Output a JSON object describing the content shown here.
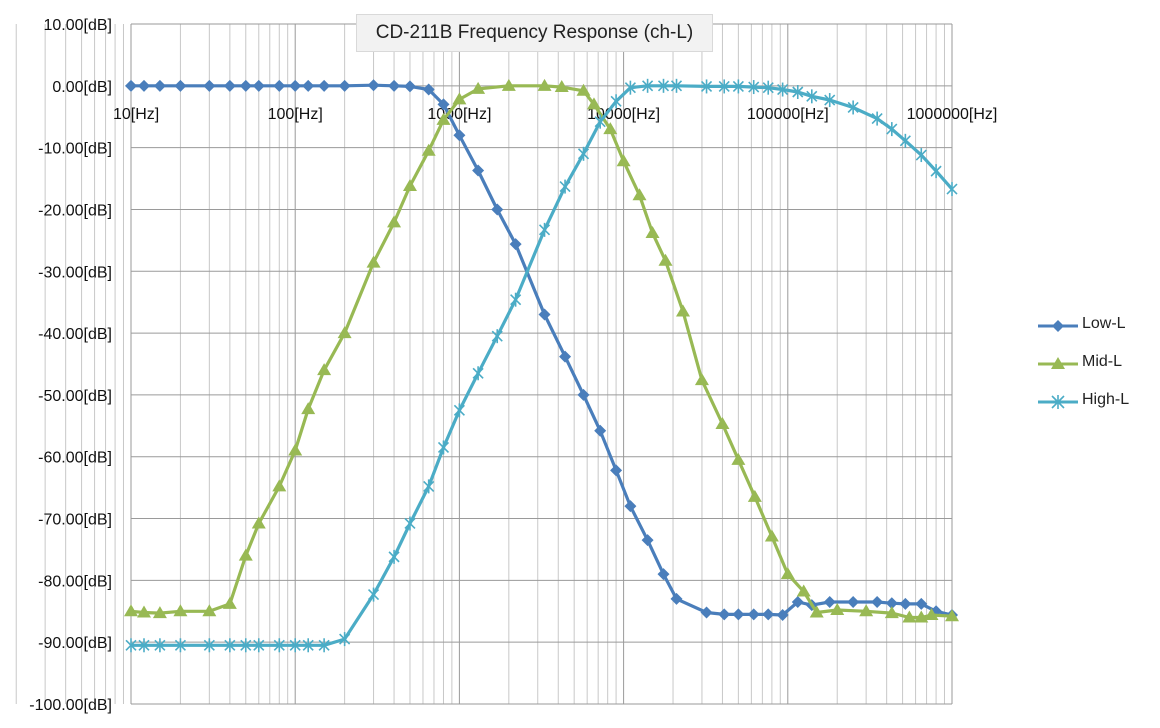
{
  "chart_data": {
    "type": "line",
    "title": "CD-211B Frequency Response (ch-L)",
    "xscale": "log",
    "xlim": [
      10,
      1000000
    ],
    "ylim": [
      -100,
      10
    ],
    "y_tick_labels": [
      "10.00[dB]",
      "0.00[dB]",
      "-10.00[dB]",
      "-20.00[dB]",
      "-30.00[dB]",
      "-40.00[dB]",
      "-50.00[dB]",
      "-60.00[dB]",
      "-70.00[dB]",
      "-80.00[dB]",
      "-90.00[dB]",
      "-100.00[dB]"
    ],
    "x_tick_labels": [
      "10[Hz]",
      "100[Hz]",
      "1000[Hz]",
      "10000[Hz]",
      "100000[Hz]",
      "1000000[Hz]"
    ],
    "grid": true,
    "legend_position": "right",
    "series": [
      {
        "name": "Low-L",
        "color": "#4a7ebb",
        "marker": "diamond",
        "x": [
          10,
          12,
          15,
          20,
          30,
          40,
          50,
          60,
          80,
          100,
          120,
          150,
          200,
          300,
          400,
          500,
          650,
          800,
          1000,
          1300,
          1700,
          2200,
          3300,
          4400,
          5700,
          7200,
          9000,
          11000,
          14000,
          17500,
          21000,
          32000,
          41000,
          50000,
          62000,
          76000,
          93000,
          115000,
          140000,
          180000,
          250000,
          350000,
          430000,
          520000,
          650000,
          800000,
          1000000
        ],
        "y": [
          0,
          0,
          0,
          0,
          0,
          0,
          0,
          0,
          0,
          0,
          0,
          0,
          0,
          0.1,
          0,
          -0.1,
          -0.6,
          -3,
          -8,
          -13.7,
          -20,
          -25.6,
          -37,
          -43.8,
          -50,
          -55.8,
          -62.2,
          -68,
          -73.5,
          -79,
          -83,
          -85.2,
          -85.5,
          -85.5,
          -85.5,
          -85.5,
          -85.6,
          -83.5,
          -84,
          -83.5,
          -83.5,
          -83.5,
          -83.7,
          -83.8,
          -83.8,
          -85,
          -85.6
        ]
      },
      {
        "name": "Mid-L",
        "color": "#98b954",
        "marker": "triangle",
        "x": [
          10,
          12,
          15,
          20,
          30,
          40,
          50,
          60,
          80,
          100,
          120,
          150,
          200,
          300,
          400,
          500,
          650,
          800,
          1000,
          1300,
          2000,
          3300,
          4200,
          5700,
          6600,
          8300,
          10000,
          12500,
          15000,
          18000,
          23000,
          30000,
          40000,
          50000,
          63000,
          80000,
          100000,
          125000,
          150000,
          200000,
          300000,
          430000,
          550000,
          650000,
          750000,
          1000000
        ],
        "y": [
          -85,
          -85.2,
          -85.3,
          -85,
          -85,
          -83.8,
          -76,
          -70.8,
          -64.8,
          -59,
          -52.3,
          -46,
          -40,
          -28.6,
          -22.1,
          -16.2,
          -10.5,
          -5.5,
          -2.2,
          -0.5,
          0,
          0,
          -0.2,
          -0.8,
          -3,
          -7,
          -12.2,
          -17.7,
          -23.8,
          -28.3,
          -36.5,
          -47.6,
          -54.7,
          -60.5,
          -66.5,
          -72.9,
          -79,
          -81.8,
          -85.2,
          -84.8,
          -85,
          -85.3,
          -86,
          -86,
          -85.6,
          -85.8
        ]
      },
      {
        "name": "High-L",
        "color": "#4bacc6",
        "marker": "star",
        "x": [
          10,
          12,
          15,
          20,
          30,
          40,
          50,
          60,
          80,
          100,
          120,
          150,
          200,
          300,
          400,
          500,
          650,
          800,
          1000,
          1300,
          1700,
          2200,
          3300,
          4400,
          5700,
          7200,
          9000,
          11000,
          14000,
          17500,
          21000,
          32000,
          41000,
          50000,
          62000,
          76000,
          93000,
          115000,
          140000,
          180000,
          250000,
          350000,
          430000,
          520000,
          650000,
          800000,
          1000000
        ],
        "y": [
          -90.5,
          -90.5,
          -90.5,
          -90.5,
          -90.5,
          -90.5,
          -90.5,
          -90.5,
          -90.5,
          -90.5,
          -90.5,
          -90.5,
          -89.5,
          -82.3,
          -76.2,
          -70.8,
          -64.8,
          -58.5,
          -52.5,
          -46.5,
          -40.5,
          -34.6,
          -23.3,
          -16.3,
          -11,
          -5.8,
          -2.5,
          -0.3,
          0,
          0,
          0,
          -0.1,
          -0.1,
          -0.1,
          -0.2,
          -0.3,
          -0.6,
          -1,
          -1.7,
          -2.3,
          -3.5,
          -5.3,
          -7,
          -8.9,
          -11.2,
          -13.8,
          -16.7
        ]
      }
    ]
  }
}
